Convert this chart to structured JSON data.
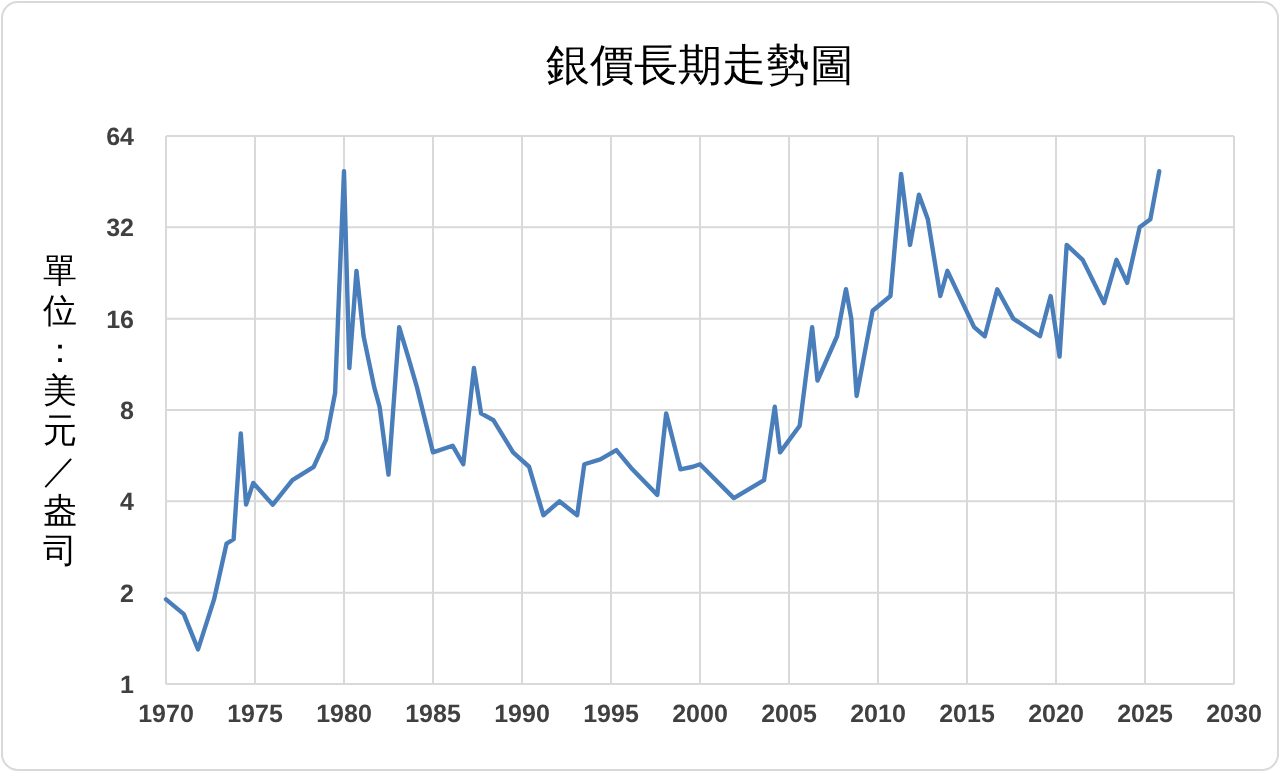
{
  "chart_data": {
    "type": "line",
    "title": "銀價長期走勢圖",
    "ylabel": "單位：美元／盎司",
    "color": "#4a7ebb",
    "log": "y",
    "grid": true,
    "x": [
      1970.0,
      1971.0,
      1971.8,
      1972.7,
      1973.4,
      1973.8,
      1974.2,
      1974.5,
      1974.9,
      1976.0,
      1977.1,
      1978.3,
      1979.0,
      1979.5,
      1979.7,
      1980.0,
      1980.3,
      1980.7,
      1981.1,
      1981.7,
      1982.0,
      1982.5,
      1983.1,
      1983.6,
      1984.1,
      1985.0,
      1986.1,
      1986.7,
      1987.3,
      1987.7,
      1988.4,
      1989.5,
      1990.4,
      1991.2,
      1992.1,
      1993.1,
      1993.5,
      1994.4,
      1995.3,
      1996.2,
      1997.6,
      1998.1,
      1998.9,
      1999.6,
      2000.0,
      2001.9,
      2003.6,
      2004.2,
      2004.5,
      2005.6,
      2006.3,
      2006.6,
      2007.7,
      2008.2,
      2008.5,
      2008.8,
      2009.7,
      2010.7,
      2011.3,
      2011.8,
      2012.3,
      2012.8,
      2013.5,
      2013.9,
      2015.4,
      2016.0,
      2016.7,
      2017.6,
      2019.1,
      2019.7,
      2020.2,
      2020.6,
      2021.5,
      2022.7,
      2023.4,
      2024.0,
      2024.7,
      2025.3,
      2025.8
    ],
    "values": [
      1.9,
      1.7,
      1.3,
      1.9,
      2.9,
      3.0,
      6.7,
      3.9,
      4.6,
      3.9,
      4.7,
      5.2,
      6.4,
      9.1,
      18,
      49,
      11,
      23,
      14,
      9.5,
      8.2,
      4.9,
      15,
      12,
      9.5,
      5.8,
      6.1,
      5.3,
      11,
      7.8,
      7.4,
      5.8,
      5.2,
      3.6,
      4.0,
      3.6,
      5.3,
      5.5,
      5.9,
      5.1,
      4.2,
      7.8,
      5.1,
      5.2,
      5.3,
      4.1,
      4.7,
      8.2,
      5.8,
      7.1,
      15,
      10,
      14,
      20,
      16,
      8.9,
      17,
      19,
      48,
      28,
      41,
      34,
      19,
      23,
      15,
      14,
      20,
      16,
      14,
      19,
      12,
      28,
      25,
      18,
      25,
      21,
      32,
      34,
      49
    ],
    "xlim": [
      1970,
      2030
    ],
    "xticks": [
      1970,
      1975,
      1980,
      1985,
      1990,
      1995,
      2000,
      2005,
      2010,
      2015,
      2020,
      2025,
      2030
    ],
    "ylim": [
      1,
      64
    ],
    "yticks": [
      1,
      2,
      4,
      8,
      16,
      32,
      64
    ]
  }
}
